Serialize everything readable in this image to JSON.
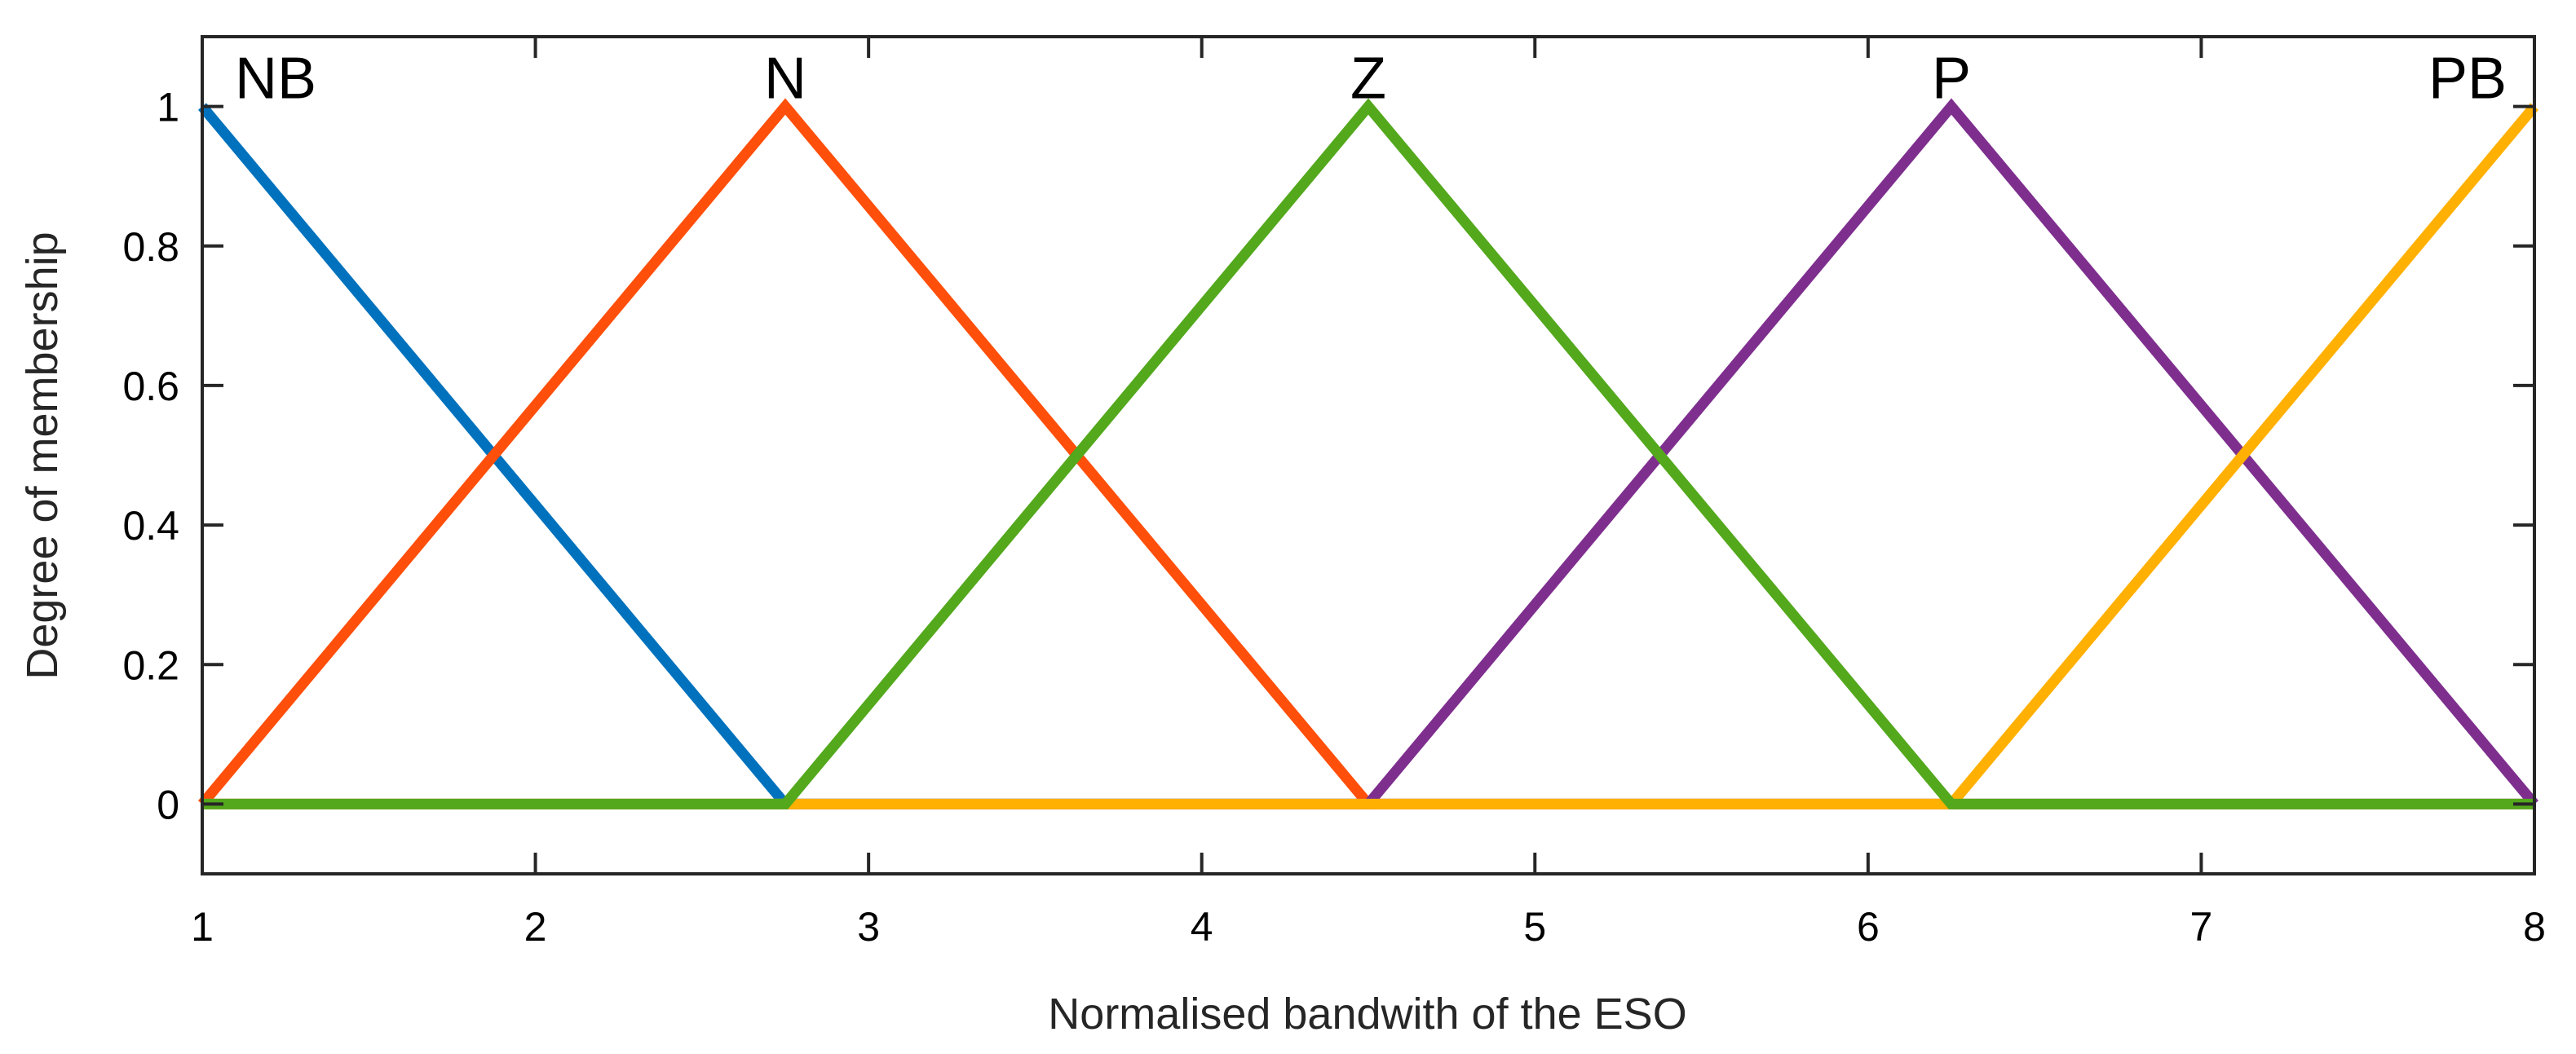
{
  "chart_data": {
    "type": "line",
    "title": "",
    "xlabel": "Normalised bandwith of the ESO",
    "ylabel": "Degree of membership",
    "xlim": [
      1,
      8
    ],
    "ylim": [
      -0.1,
      1.1
    ],
    "xticks": [
      1,
      2,
      3,
      4,
      5,
      6,
      7,
      8
    ],
    "xtick_labels": [
      "1",
      "2",
      "3",
      "4",
      "5",
      "6",
      "7",
      "8"
    ],
    "yticks": [
      0,
      0.2,
      0.4,
      0.6,
      0.8,
      1
    ],
    "ytick_labels": [
      "0",
      "0.2",
      "0.4",
      "0.6",
      "0.8",
      "1"
    ],
    "grid": false,
    "box": true,
    "series": [
      {
        "name": "NB",
        "label": "NB",
        "color": "#0072BD",
        "x": [
          1,
          2.75,
          8
        ],
        "y": [
          1,
          0,
          0
        ]
      },
      {
        "name": "N",
        "label": "N",
        "color": "#FF4F0A",
        "x": [
          1,
          2.75,
          4.5,
          8
        ],
        "y": [
          0,
          1,
          0,
          0
        ]
      },
      {
        "name": "P",
        "label": "P",
        "color": "#7E2F8E",
        "x": [
          1,
          4.5,
          6.25,
          8
        ],
        "y": [
          0,
          0,
          1,
          0
        ]
      },
      {
        "name": "PB",
        "label": "PB",
        "color": "#FFB000",
        "x": [
          1,
          6.25,
          8
        ],
        "y": [
          0,
          0,
          1
        ]
      },
      {
        "name": "Z",
        "label": "Z",
        "color": "#53A81C",
        "x": [
          1,
          2.75,
          4.5,
          6.25,
          8
        ],
        "y": [
          0,
          0,
          1,
          0,
          0
        ]
      }
    ],
    "annotations": [
      {
        "text": "NB",
        "x": 1.0,
        "y": 1.0,
        "anchor": "start"
      },
      {
        "text": "N",
        "x": 2.75,
        "y": 1.0,
        "anchor": "middle"
      },
      {
        "text": "Z",
        "x": 4.5,
        "y": 1.0,
        "anchor": "middle"
      },
      {
        "text": "P",
        "x": 6.25,
        "y": 1.0,
        "anchor": "middle"
      },
      {
        "text": "PB",
        "x": 8.0,
        "y": 1.0,
        "anchor": "end"
      }
    ]
  }
}
